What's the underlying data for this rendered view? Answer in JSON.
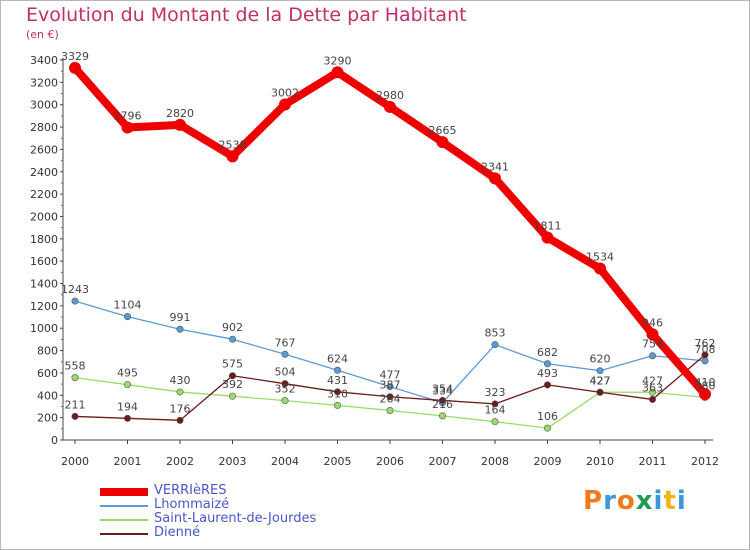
{
  "title": "Evolution du Montant de la Dette par Habitant",
  "unit_label": "(en €)",
  "logo_text": "Proxiti",
  "chart_data": {
    "type": "line",
    "x": [
      "2000",
      "2001",
      "2002",
      "2003",
      "2004",
      "2005",
      "2006",
      "2007",
      "2008",
      "2009",
      "2010",
      "2011",
      "2012"
    ],
    "ylim": [
      0,
      3400
    ],
    "yticks": [
      0,
      200,
      400,
      600,
      800,
      1000,
      1200,
      1400,
      1600,
      1800,
      2000,
      2200,
      2400,
      2600,
      2800,
      3000,
      3200,
      3400
    ],
    "grid": false,
    "legend_position": "bottom-left",
    "series": [
      {
        "name": "VERRIèRES",
        "color": "#ee0000",
        "values": [
          3329,
          2796,
          2820,
          2538,
          3002,
          3290,
          2980,
          2665,
          2341,
          1811,
          1534,
          946,
          410
        ],
        "labels": [
          "3329",
          "2796",
          "2820",
          "2538",
          "3002",
          "3290",
          "2980",
          "2665",
          "2341",
          "1811",
          "1534",
          "946",
          "410"
        ]
      },
      {
        "name": "Lhommaizé",
        "color": "#5b9bd5",
        "values": [
          1243,
          1104,
          991,
          902,
          767,
          624,
          477,
          334,
          853,
          682,
          620,
          754,
          708
        ],
        "labels": [
          "1243",
          "1104",
          "991",
          "902",
          "767",
          "624",
          "477",
          "334",
          "853",
          "682",
          "620",
          "754",
          "708"
        ]
      },
      {
        "name": "Saint-Laurent-de-Jourdes",
        "color": "#99dd66",
        "values": [
          558,
          495,
          430,
          392,
          352,
          310,
          264,
          216,
          164,
          106,
          427,
          427,
          380
        ],
        "labels": [
          "558",
          "495",
          "430",
          "392",
          "352",
          "310",
          "264",
          "216",
          "164",
          "106",
          "427",
          "427",
          "380"
        ]
      },
      {
        "name": "Dienné",
        "color": "#6b1a1a",
        "values": [
          211,
          194,
          176,
          575,
          504,
          431,
          387,
          354,
          323,
          493,
          427,
          363,
          762
        ],
        "labels": [
          "211",
          "194",
          "176",
          "575",
          "504",
          "431",
          "387",
          "354",
          "323",
          "493",
          "427",
          "363",
          "762"
        ]
      }
    ]
  }
}
